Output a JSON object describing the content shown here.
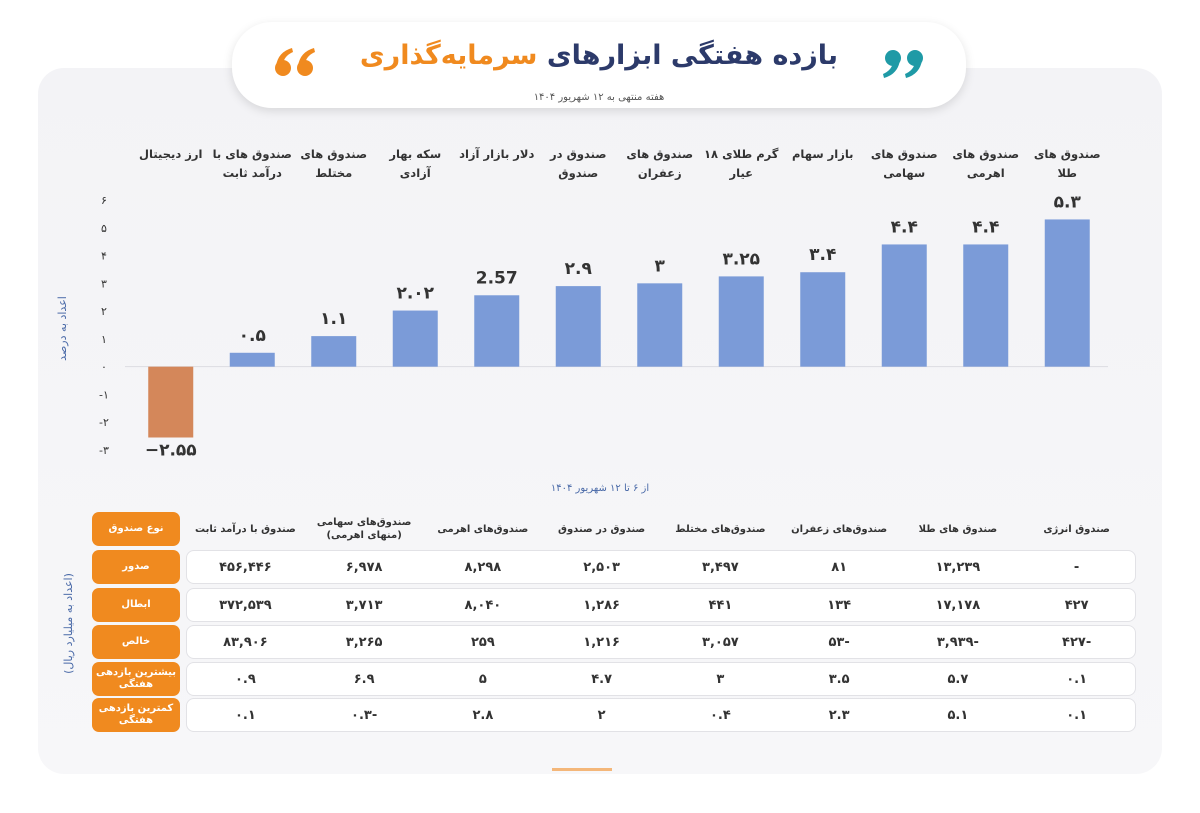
{
  "chart_data": {
    "type": "bar",
    "title": "بازده هفتگی ابزارهای",
    "title_highlight": "سرمایه‌گذاری",
    "subtitle": "هفته منتهی به ۱۲ شهریور ۱۴۰۴",
    "ylabel": "اعداد به درصد",
    "xlabel": "از ۶ تا ۱۲ شهریور ۱۴۰۴",
    "categories": [
      "ارز دیجیتال",
      "صندوق های با درآمد ثابت",
      "صندوق های مختلط",
      "سکه بهار آزادی",
      "دلار بازار آزاد",
      "صندوق در صندوق",
      "صندوق های زعفران",
      "گرم طلای ۱۸ عیار",
      "بازار سهام",
      "صندوق های سهامی",
      "صندوق های اهرمی",
      "صندوق های طلا"
    ],
    "values": [
      -2.55,
      0.5,
      1.1,
      2.02,
      2.57,
      2.9,
      3,
      3.25,
      3.4,
      4.4,
      4.4,
      5.3
    ],
    "value_labels": [
      "−۲.۵۵",
      "۰.۵",
      "۱.۱",
      "۲.۰۲",
      "2.57",
      "۲.۹",
      "۳",
      "۳.۲۵",
      "۳.۴",
      "۴.۴",
      "۴.۴",
      "۵.۳"
    ],
    "color": "#7b9bd8",
    "negative_color": "#d4875a",
    "ylim": [
      -3,
      6
    ],
    "yticks": [
      {
        "value": 6,
        "label": "۶"
      },
      {
        "value": 5,
        "label": "۵"
      },
      {
        "value": 4,
        "label": "۴"
      },
      {
        "value": 3,
        "label": "۳"
      },
      {
        "value": 2,
        "label": "۲"
      },
      {
        "value": 1,
        "label": "۱"
      },
      {
        "value": 0,
        "label": "۰"
      },
      {
        "value": -1,
        "label": "-۱"
      },
      {
        "value": -2,
        "label": "-۲"
      },
      {
        "value": -3,
        "label": "-۳"
      }
    ]
  },
  "table": {
    "unit_label": "(اعداد به میلیارد ریال)",
    "header": [
      "نوع صندوق",
      "صندوق با درآمد ثابت",
      "صندوق‌های سهامی (منهای اهرمی)",
      "صندوق‌های اهرمی",
      "صندوق در صندوق",
      "صندوق‌های مختلط",
      "صندوق‌های زعفران",
      "صندوق های طلا",
      "صندوق انرژی"
    ],
    "rows": [
      [
        "صدور",
        "۴۵۶,۴۴۶",
        "۶,۹۷۸",
        "۸,۲۹۸",
        "۲,۵۰۳",
        "۳,۴۹۷",
        "۸۱",
        "۱۳,۲۳۹",
        "-"
      ],
      [
        "ابطال",
        "۳۷۲,۵۳۹",
        "۳,۷۱۳",
        "۸,۰۴۰",
        "۱,۲۸۶",
        "۴۴۱",
        "۱۳۴",
        "۱۷,۱۷۸",
        "۴۲۷"
      ],
      [
        "خالص",
        "۸۳,۹۰۶",
        "۳,۲۶۵",
        "۲۵۹",
        "۱,۲۱۶",
        "۳,۰۵۷",
        "-۵۳",
        "-۳,۹۳۹",
        "-۴۲۷"
      ],
      [
        "بیشترین بازدهی هفتگی",
        "۰.۹",
        "۶.۹",
        "۵",
        "۴.۷",
        "۳",
        "۳.۵",
        "۵.۷",
        "۰.۱"
      ],
      [
        "کمترین بازدهی هفتگی",
        "۰.۱",
        "-۰.۳",
        "۲.۸",
        "۲",
        "۰.۴",
        "۲.۳",
        "۵.۱",
        "۰.۱"
      ]
    ]
  }
}
